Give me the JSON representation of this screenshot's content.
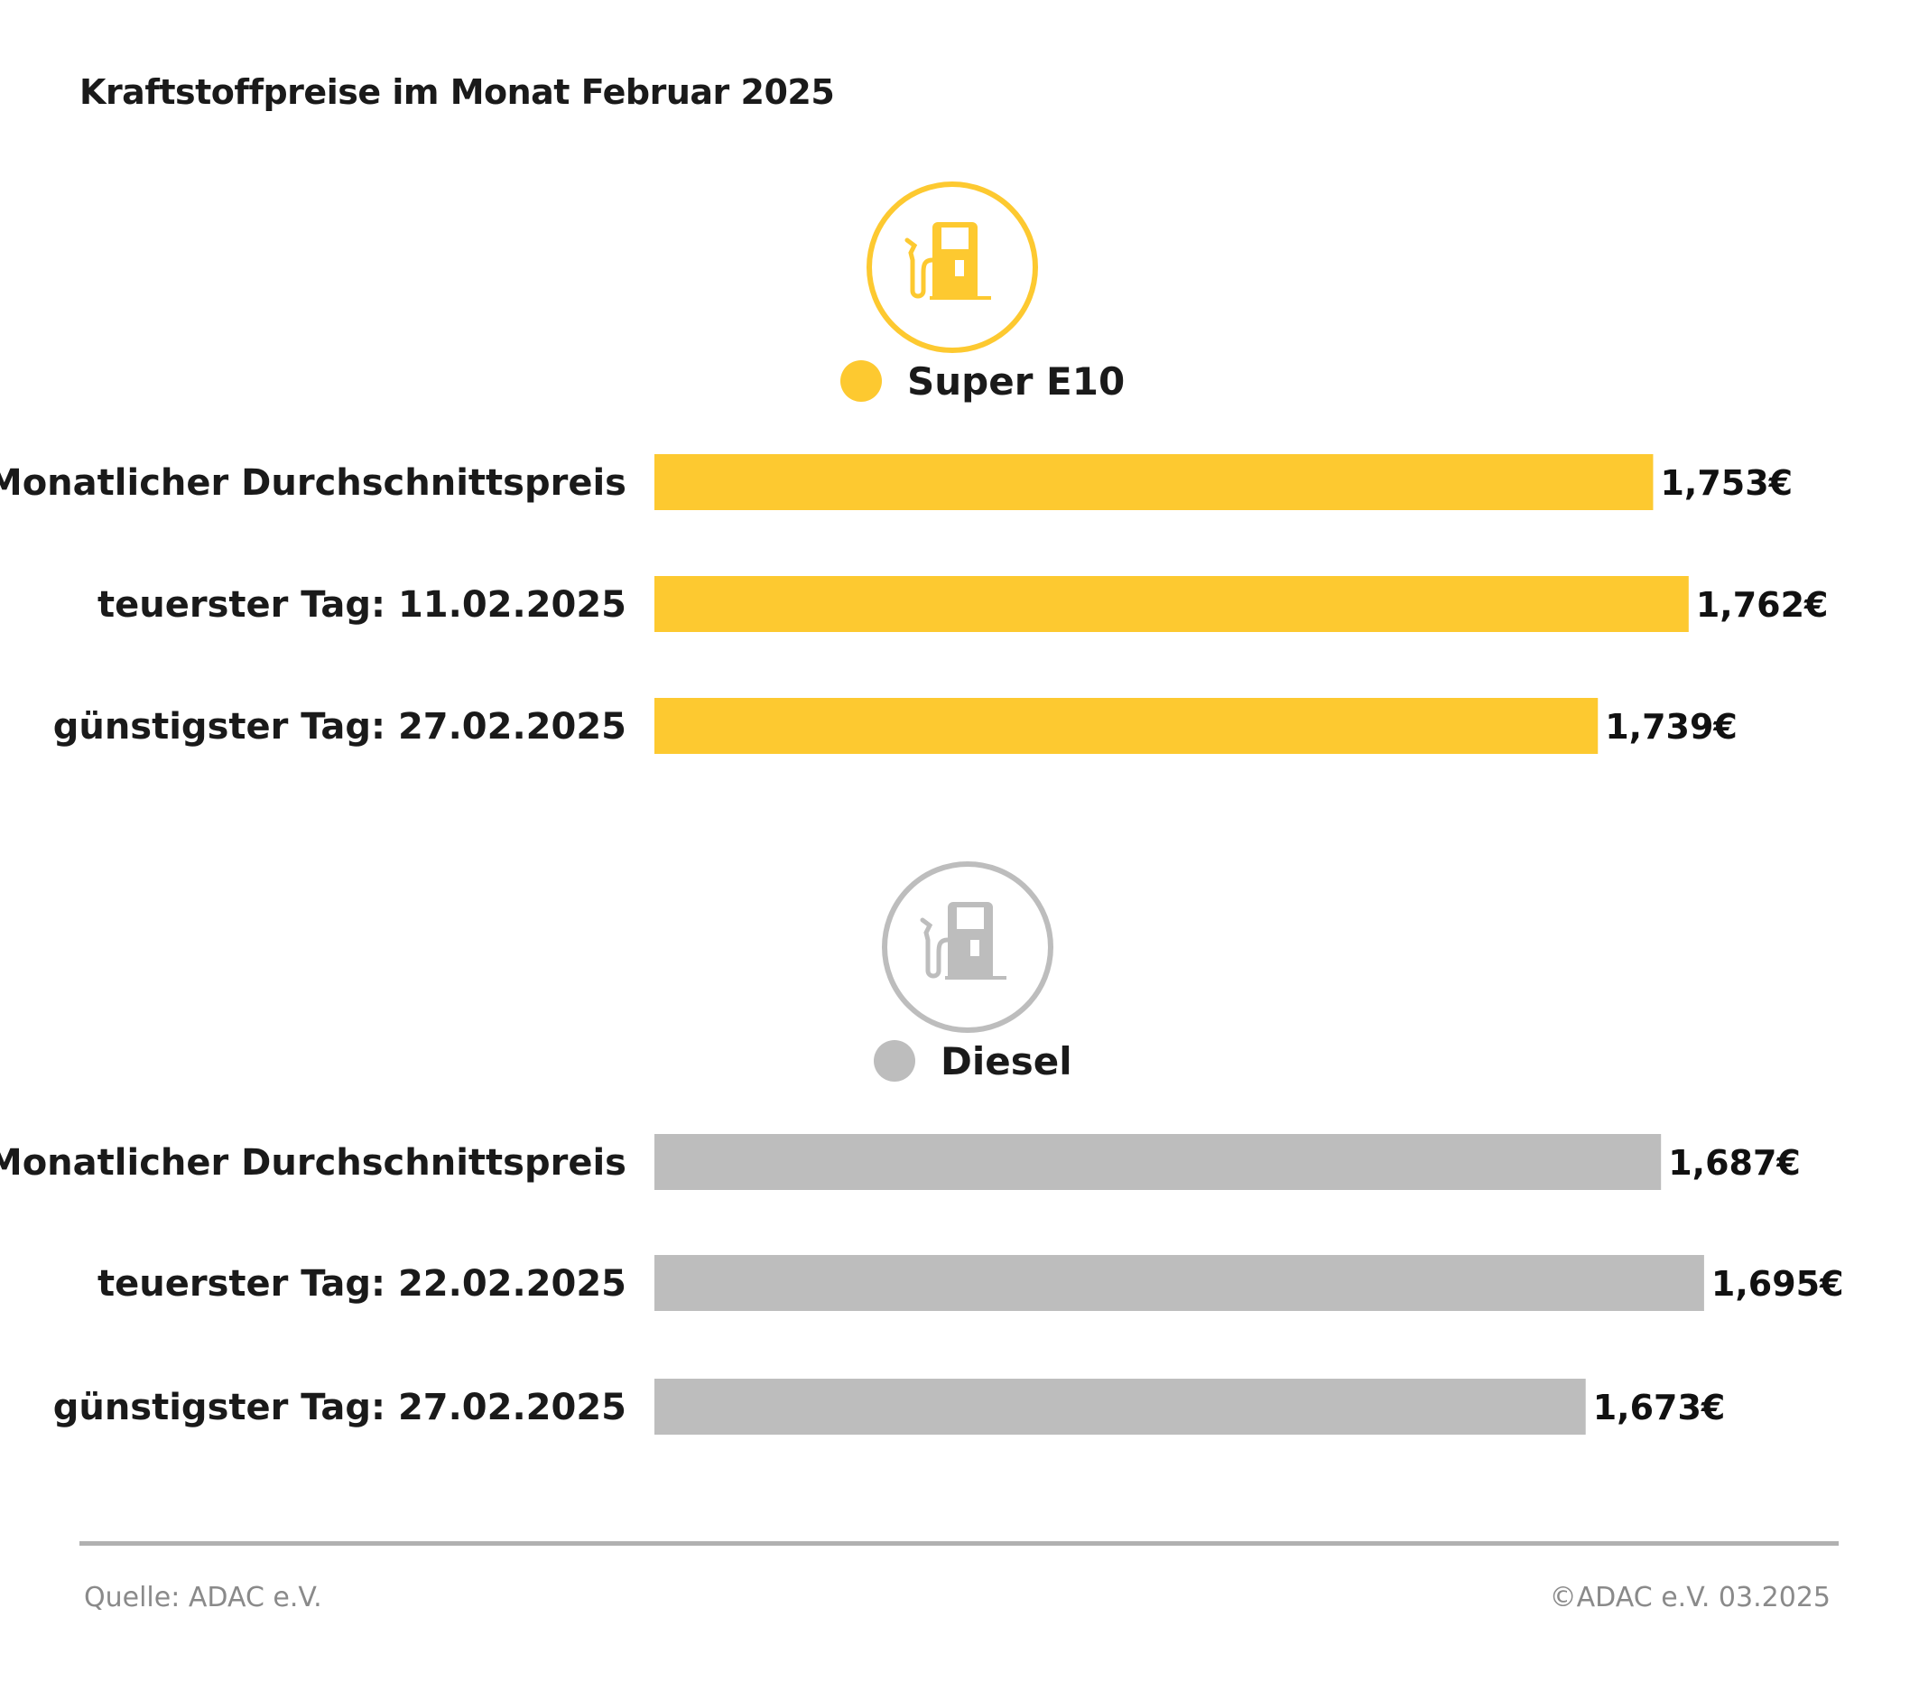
{
  "title": "Kraftstoffpreise im Monat Februar 2025",
  "chart_data": [
    {
      "type": "bar",
      "orientation": "horizontal",
      "series": [
        {
          "name": "Super E10",
          "values": [
            1.753,
            1.762,
            1.739
          ]
        }
      ],
      "categories": [
        "Monatlicher Durchschnittspreis",
        "teuerster Tag: 11.02.2025",
        "günstigster Tag: 27.02.2025"
      ],
      "data_labels": [
        "1,753€",
        "1,762€",
        "1,739€"
      ],
      "xlim": [
        1.5,
        1.8
      ],
      "color": "#fdc930",
      "icon": "fuel-pump-icon",
      "grid": false
    },
    {
      "type": "bar",
      "orientation": "horizontal",
      "series": [
        {
          "name": "Diesel",
          "values": [
            1.687,
            1.695,
            1.673
          ]
        }
      ],
      "categories": [
        "Monatlicher Durchschnittspreis",
        "teuerster Tag: 22.02.2025",
        "günstigster Tag: 27.02.2025"
      ],
      "data_labels": [
        "1,687€",
        "1,695€",
        "1,673€"
      ],
      "xlim": [
        1.5,
        1.72
      ],
      "color": "#bdbdbd",
      "icon": "fuel-pump-icon",
      "grid": false
    }
  ],
  "footer": {
    "source": "Quelle: ADAC e.V.",
    "copyright": "©ADAC e.V. 03.2025"
  }
}
